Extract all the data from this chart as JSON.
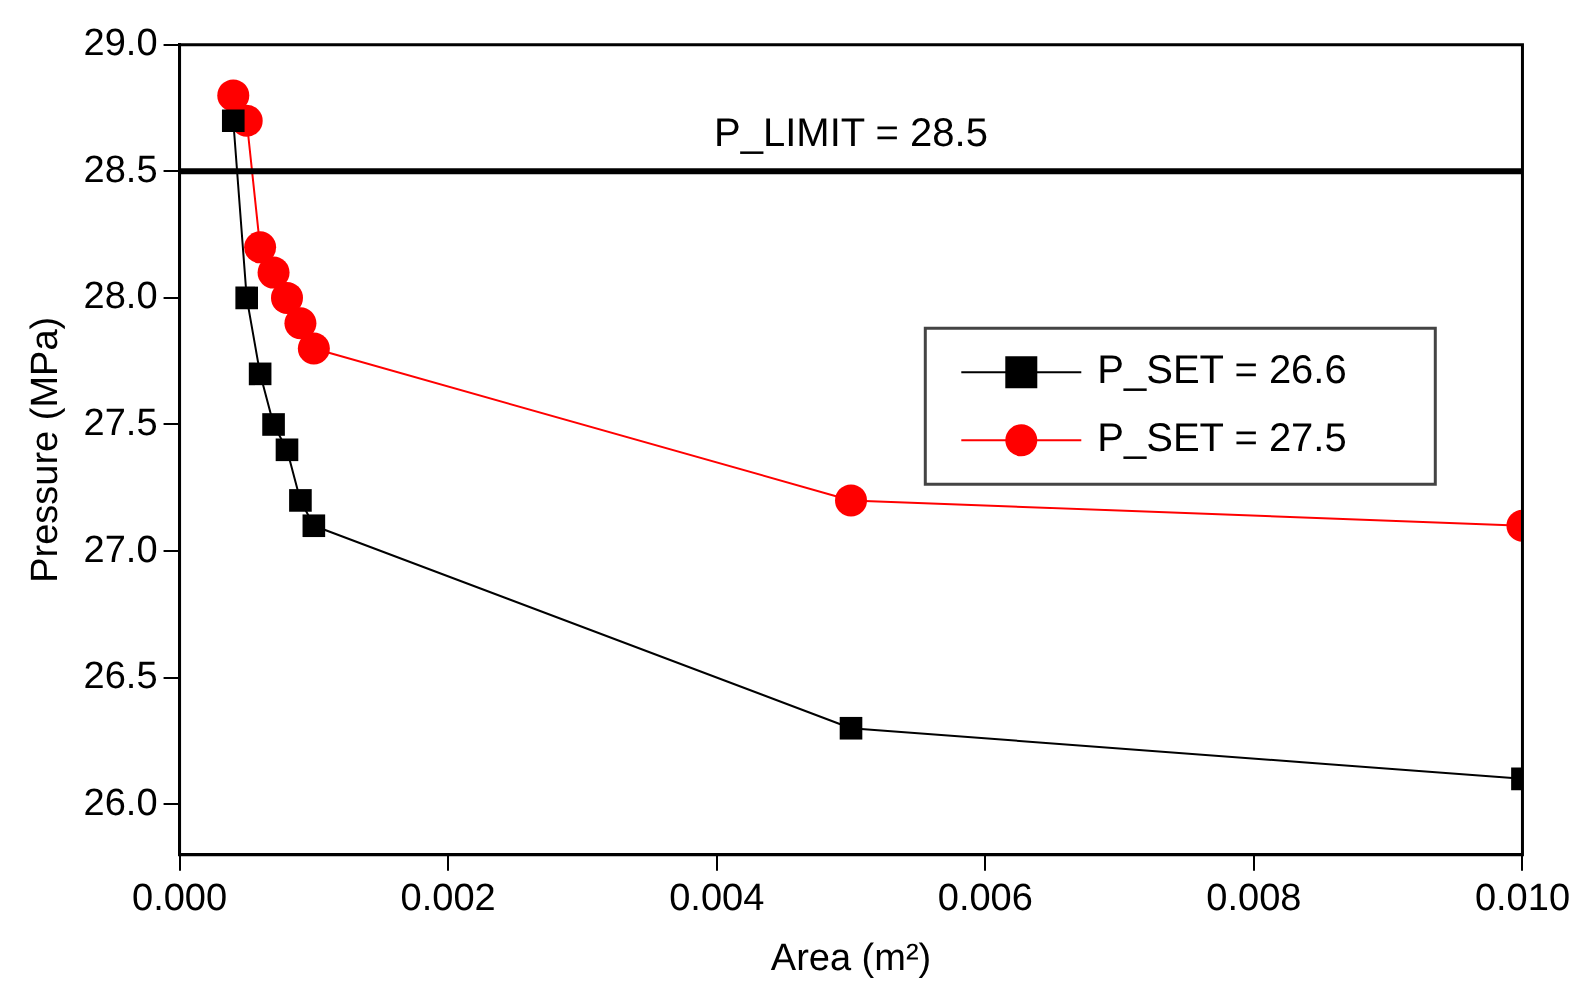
{
  "chart_data": {
    "type": "line",
    "xlabel": "Area (m²)",
    "ylabel": "Pressure (MPa)",
    "xlim": [
      0,
      0.01
    ],
    "xticks": [
      {
        "value": 0,
        "label": "0.000"
      },
      {
        "value": 0.002,
        "label": "0.002"
      },
      {
        "value": 0.004,
        "label": "0.004"
      },
      {
        "value": 0.006,
        "label": "0.006"
      },
      {
        "value": 0.008,
        "label": "0.008"
      },
      {
        "value": 0.01,
        "label": "0.010"
      }
    ],
    "ylim": [
      25.8,
      29.0
    ],
    "yticks": [
      {
        "value": 26,
        "label": "26.0"
      },
      {
        "value": 26.5,
        "label": "26.5"
      },
      {
        "value": 27,
        "label": "27.0"
      },
      {
        "value": 27.5,
        "label": "27.5"
      },
      {
        "value": 28,
        "label": "28.0"
      },
      {
        "value": 28.5,
        "label": "28.5"
      },
      {
        "value": 29,
        "label": "29.0"
      }
    ],
    "x": [
      0.0004,
      0.0005,
      0.0006,
      0.0007,
      0.0008,
      0.0009,
      0.001,
      0.005,
      0.01
    ],
    "series": [
      {
        "name": "P_SET = 26.6",
        "color": "#000000",
        "marker": "square",
        "values": [
          28.7,
          28.0,
          27.7,
          27.5,
          27.4,
          27.2,
          27.1,
          26.3,
          26.1
        ]
      },
      {
        "name": "P_SET = 27.5",
        "color": "#ff0000",
        "marker": "circle",
        "values": [
          28.8,
          28.7,
          28.2,
          28.1,
          28.0,
          27.9,
          27.8,
          27.2,
          27.1
        ]
      }
    ],
    "ref_lines": [
      {
        "axis": "y",
        "value": 28.5,
        "label": "P_LIMIT = 28.5",
        "color": "#000000"
      }
    ],
    "grid": false,
    "legend": "right",
    "line_style": "solid"
  }
}
